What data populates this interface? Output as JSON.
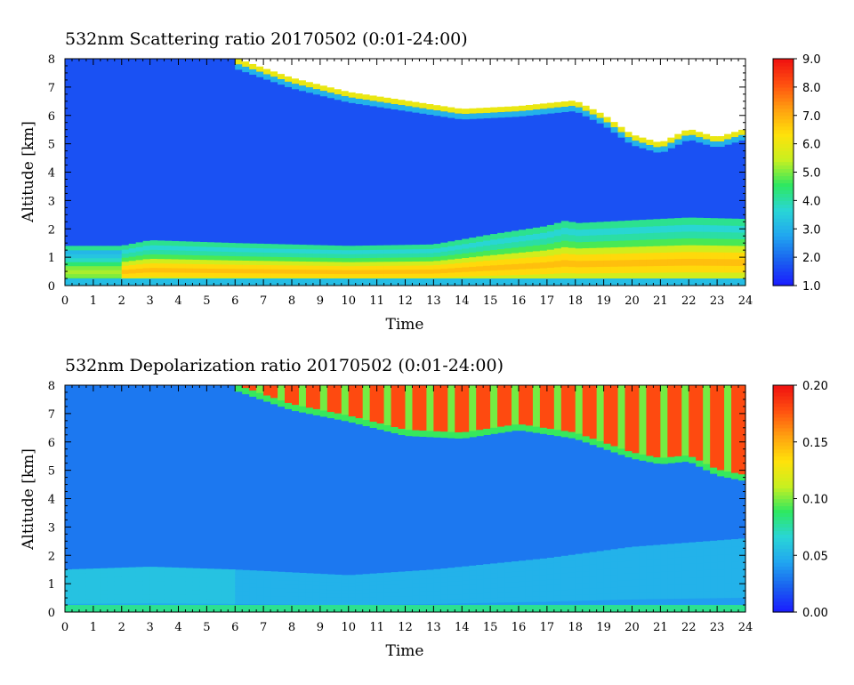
{
  "colormap": [
    "#1a1aff",
    "#1a60f0",
    "#21a6f0",
    "#29d6d6",
    "#2ee860",
    "#c8f020",
    "#ffe20a",
    "#ffa010",
    "#ff5010",
    "#f01010"
  ],
  "chart_data": [
    {
      "type": "heatmap",
      "title": "532nm Scattering ratio  20170502 (0:01-24:00)",
      "xlabel": "Time",
      "ylabel": "Altitude [km]",
      "xlim": [
        0,
        24
      ],
      "ylim": [
        0,
        8
      ],
      "x_ticks": [
        "0",
        "1",
        "2",
        "3",
        "4",
        "5",
        "6",
        "7",
        "8",
        "9",
        "10",
        "11",
        "12",
        "13",
        "14",
        "15",
        "16",
        "17",
        "18",
        "19",
        "20",
        "21",
        "22",
        "23",
        "24"
      ],
      "y_ticks": [
        "0",
        "1",
        "2",
        "3",
        "4",
        "5",
        "6",
        "7",
        "8"
      ],
      "colorbar": {
        "min": 1.0,
        "max": 9.0,
        "ticks": [
          "1.0",
          "2.0",
          "3.0",
          "4.0",
          "5.0",
          "6.0",
          "7.0",
          "8.0",
          "9.0"
        ]
      },
      "background_value": 1.7,
      "features": [
        {
          "kind": "aerosol_layer_top",
          "time": [
            0,
            2,
            3,
            6,
            10,
            13,
            15,
            17,
            17.7,
            18,
            20,
            22,
            24
          ],
          "altitude_km": [
            1.4,
            1.4,
            1.6,
            1.5,
            1.4,
            1.45,
            1.8,
            2.1,
            2.3,
            2.2,
            2.3,
            2.4,
            2.35
          ]
        },
        {
          "kind": "aerosol_core_value",
          "value": 6.8
        },
        {
          "kind": "cloud_base",
          "time": [
            6,
            8,
            10,
            12,
            14,
            16,
            18,
            19,
            20,
            21,
            22,
            23,
            24
          ],
          "altitude_km": [
            8.0,
            7.3,
            6.8,
            6.5,
            6.2,
            6.3,
            6.5,
            6.0,
            5.3,
            5.0,
            5.5,
            5.2,
            5.5
          ]
        }
      ]
    },
    {
      "type": "heatmap",
      "title": "532nm Depolarization ratio  20170502 (0:01-24:00)",
      "xlabel": "Time",
      "ylabel": "Altitude [km]",
      "xlim": [
        0,
        24
      ],
      "ylim": [
        0,
        8
      ],
      "x_ticks": [
        "0",
        "1",
        "2",
        "3",
        "4",
        "5",
        "6",
        "7",
        "8",
        "9",
        "10",
        "11",
        "12",
        "13",
        "14",
        "15",
        "16",
        "17",
        "18",
        "19",
        "20",
        "21",
        "22",
        "23",
        "24"
      ],
      "y_ticks": [
        "0",
        "1",
        "2",
        "3",
        "4",
        "5",
        "6",
        "7",
        "8"
      ],
      "colorbar": {
        "min": 0.0,
        "max": 0.2,
        "ticks": [
          "0.00",
          "0.05",
          "0.10",
          "0.15",
          "0.20"
        ]
      },
      "background_value": 0.03,
      "features": [
        {
          "kind": "aerosol_layer_top",
          "time": [
            0,
            3,
            6,
            10,
            13,
            17,
            20,
            24
          ],
          "altitude_km": [
            1.5,
            1.6,
            1.5,
            1.3,
            1.5,
            1.9,
            2.3,
            2.6
          ]
        },
        {
          "kind": "aerosol_layer_value",
          "value": 0.055
        },
        {
          "kind": "cloud_base",
          "time": [
            6,
            8,
            10,
            12,
            14,
            16,
            18,
            20,
            21,
            22,
            23,
            24
          ],
          "altitude_km": [
            8.0,
            7.3,
            6.9,
            6.4,
            6.3,
            6.6,
            6.3,
            5.6,
            5.4,
            5.5,
            5.0,
            4.8
          ]
        },
        {
          "kind": "cloud_value",
          "value": 0.18
        }
      ]
    }
  ]
}
